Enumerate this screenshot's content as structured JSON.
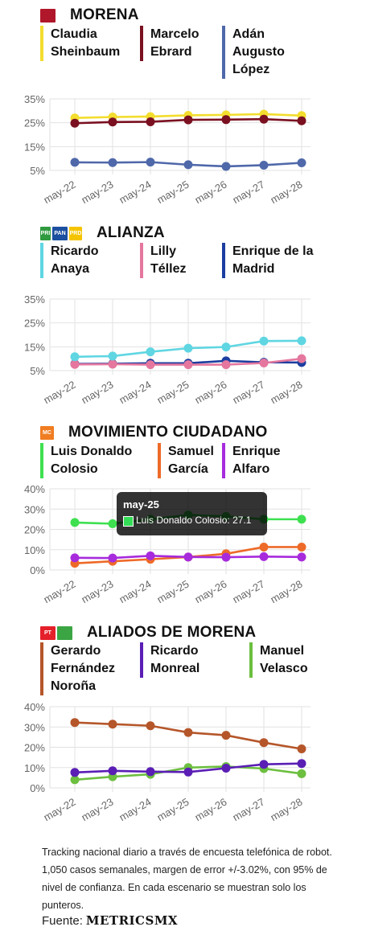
{
  "sections": [
    {
      "party": "MORENA",
      "logos": [
        {
          "text": "MORENA",
          "color": "#b0172a",
          "w": 17
        }
      ],
      "candidates": [
        {
          "name": "Claudia\nSheinbaum",
          "color": "#f3dd2e"
        },
        {
          "name": "Marcelo\nEbrard",
          "color": "#7a1020"
        },
        {
          "name": "Adán\nAugusto\nLópez",
          "color": "#4f68aa"
        }
      ],
      "chart_data": {
        "type": "line",
        "categories": [
          "may-22",
          "may-23",
          "may-24",
          "may-25",
          "may-26",
          "may-27",
          "may-28"
        ],
        "yticks": [
          "35%",
          "25%",
          "15%",
          "5%"
        ],
        "ylim": [
          5,
          35
        ],
        "series": [
          {
            "name": "Claudia Sheinbaum",
            "color": "#f3dd2e",
            "values": [
              27.0,
              27.4,
              27.6,
              28.1,
              28.3,
              28.6,
              28.0
            ]
          },
          {
            "name": "Marcelo Ebrard",
            "color": "#7a1020",
            "values": [
              24.8,
              25.3,
              25.4,
              26.2,
              26.3,
              26.5,
              25.8
            ]
          },
          {
            "name": "Adán Augusto López",
            "color": "#4f68aa",
            "values": [
              8.4,
              8.3,
              8.5,
              7.4,
              6.7,
              7.2,
              8.2
            ]
          }
        ]
      }
    },
    {
      "party": "ALIANZA",
      "logos": [
        {
          "text": "PRI",
          "color": "#2f9a3f",
          "w": 11
        },
        {
          "text": "PAN",
          "color": "#1b4fa0",
          "w": 17
        },
        {
          "text": "PRD",
          "color": "#f5c400",
          "w": 14
        }
      ],
      "candidates": [
        {
          "name": "Ricardo\nAnaya",
          "color": "#5fd6e2"
        },
        {
          "name": "Lilly\nTéllez",
          "color": "#e5779f"
        },
        {
          "name": "Enrique de la\nMadrid",
          "color": "#1d3ea0"
        }
      ],
      "chart_data": {
        "type": "line",
        "categories": [
          "may-22",
          "may-23",
          "may-24",
          "may-25",
          "may-26",
          "may-27",
          "may-28"
        ],
        "yticks": [
          "35%",
          "25%",
          "15%",
          "5%"
        ],
        "ylim": [
          5,
          35
        ],
        "series": [
          {
            "name": "Enrique de la Madrid",
            "color": "#1d3ea0",
            "values": [
              7.8,
              7.9,
              8.1,
              8.1,
              9.1,
              8.5,
              8.4
            ]
          },
          {
            "name": "Lilly Téllez",
            "color": "#e5779f",
            "values": [
              7.6,
              7.7,
              7.5,
              7.5,
              7.5,
              8.2,
              10.0
            ]
          },
          {
            "name": "Ricardo Anaya",
            "color": "#5fd6e2",
            "values": [
              10.8,
              11.1,
              12.9,
              14.4,
              14.9,
              17.4,
              17.5
            ]
          }
        ]
      }
    },
    {
      "party": "MOVIMIENTO CIUDADANO",
      "logos": [
        {
          "text": "MC",
          "color": "#f07d22",
          "w": 15
        }
      ],
      "candidates": [
        {
          "name": "Luis Donaldo\nColosio",
          "color": "#3ee050"
        },
        {
          "name": "Samuel\nGarcía",
          "color": "#ee6a28"
        },
        {
          "name": "Enrique\nAlfaro",
          "color": "#a72bdc"
        }
      ],
      "chart_data": {
        "type": "line",
        "categories": [
          "may-22",
          "may-23",
          "may-24",
          "may-25",
          "may-26",
          "may-27",
          "may-28"
        ],
        "yticks": [
          "40%",
          "30%",
          "20%",
          "10%",
          "0%"
        ],
        "ylim": [
          0,
          40
        ],
        "series": [
          {
            "name": "Luis Donaldo Colosio",
            "color": "#3ee050",
            "values": [
              23.4,
              22.8,
              25.0,
              27.1,
              26.4,
              25.0,
              25.0
            ]
          },
          {
            "name": "Samuel García",
            "color": "#ee6a28",
            "values": [
              3.3,
              4.3,
              5.3,
              6.4,
              8.0,
              11.3,
              11.3
            ]
          },
          {
            "name": "Enrique Alfaro",
            "color": "#a72bdc",
            "values": [
              6.0,
              5.9,
              7.0,
              6.4,
              6.3,
              6.6,
              6.4
            ]
          }
        ],
        "tooltip": {
          "title": "may-25",
          "text": "Luis Donaldo Colosio: 27.1"
        }
      }
    },
    {
      "party": "ALIADOS DE MORENA",
      "logos": [
        {
          "text": "PT",
          "color": "#e4202a",
          "w": 17
        },
        {
          "text": "PVEM",
          "color": "#3ba544",
          "w": 17
        }
      ],
      "candidates": [
        {
          "name": "Gerardo\nFernández\nNoroña",
          "color": "#b5562a"
        },
        {
          "name": "Ricardo\nMonreal",
          "color": "#5a1eb5"
        },
        {
          "name": "Manuel\nVelasco",
          "color": "#6cbf3f"
        }
      ],
      "chart_data": {
        "type": "line",
        "categories": [
          "may-22",
          "may-23",
          "may-24",
          "may-25",
          "may-26",
          "may-27",
          "may-28"
        ],
        "yticks": [
          "40%",
          "30%",
          "20%",
          "10%",
          "0%"
        ],
        "ylim": [
          0,
          40
        ],
        "series": [
          {
            "name": "Manuel Velasco",
            "color": "#6cbf3f",
            "values": [
              4.0,
              5.5,
              6.7,
              10.0,
              10.5,
              9.5,
              7.0
            ]
          },
          {
            "name": "Ricardo Monreal",
            "color": "#5a1eb5",
            "values": [
              7.6,
              8.4,
              8.0,
              7.8,
              9.7,
              11.6,
              12.0
            ]
          },
          {
            "name": "Gerardo Fernández Noroña",
            "color": "#b5562a",
            "values": [
              32.2,
              31.4,
              30.6,
              27.3,
              25.9,
              22.3,
              19.2
            ]
          }
        ]
      }
    }
  ],
  "footer": {
    "note": "Tracking nacional diario a través de encuesta telefónica de robot. 1,050 casos semanales, margen de error +/-3.02%, con 95% de nivel de confianza. En cada escenario se muestran solo los punteros.",
    "source_label": "Fuente:",
    "brand": "METRICSMX"
  }
}
